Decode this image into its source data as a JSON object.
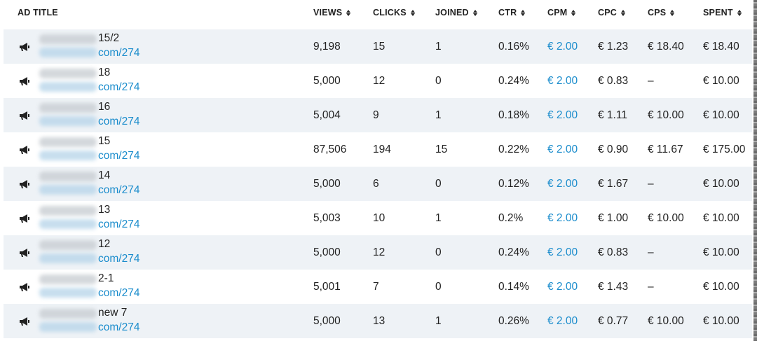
{
  "columns": {
    "ad_title": "AD TITLE",
    "views": "VIEWS",
    "clicks": "CLICKS",
    "joined": "JOINED",
    "ctr": "CTR",
    "cpm": "CPM",
    "cpc": "CPC",
    "cps": "CPS",
    "spent": "SPENT"
  },
  "rows": [
    {
      "title": "15/2",
      "link": "com/274",
      "views": "9,198",
      "clicks": "15",
      "joined": "1",
      "ctr": "0.16%",
      "cpm": "€ 2.00",
      "cpc": "€ 1.23",
      "cps": "€ 18.40",
      "spent": "€ 18.40"
    },
    {
      "title": "18",
      "link": "com/274",
      "views": "5,000",
      "clicks": "12",
      "joined": "0",
      "ctr": "0.24%",
      "cpm": "€ 2.00",
      "cpc": "€ 0.83",
      "cps": "–",
      "spent": "€ 10.00"
    },
    {
      "title": "16",
      "link": "com/274",
      "views": "5,004",
      "clicks": "9",
      "joined": "1",
      "ctr": "0.18%",
      "cpm": "€ 2.00",
      "cpc": "€ 1.11",
      "cps": "€ 10.00",
      "spent": "€ 10.00"
    },
    {
      "title": "15",
      "link": "com/274",
      "views": "87,506",
      "clicks": "194",
      "joined": "15",
      "ctr": "0.22%",
      "cpm": "€ 2.00",
      "cpc": "€ 0.90",
      "cps": "€ 11.67",
      "spent": "€ 175.00"
    },
    {
      "title": "14",
      "link": "com/274",
      "views": "5,000",
      "clicks": "6",
      "joined": "0",
      "ctr": "0.12%",
      "cpm": "€ 2.00",
      "cpc": "€ 1.67",
      "cps": "–",
      "spent": "€ 10.00"
    },
    {
      "title": "13",
      "link": "com/274",
      "views": "5,003",
      "clicks": "10",
      "joined": "1",
      "ctr": "0.2%",
      "cpm": "€ 2.00",
      "cpc": "€ 1.00",
      "cps": "€ 10.00",
      "spent": "€ 10.00"
    },
    {
      "title": "12",
      "link": "com/274",
      "views": "5,000",
      "clicks": "12",
      "joined": "0",
      "ctr": "0.24%",
      "cpm": "€ 2.00",
      "cpc": "€ 0.83",
      "cps": "–",
      "spent": "€ 10.00"
    },
    {
      "title": "2-1",
      "link": "com/274",
      "views": "5,001",
      "clicks": "7",
      "joined": "0",
      "ctr": "0.14%",
      "cpm": "€ 2.00",
      "cpc": "€ 1.43",
      "cps": "–",
      "spent": "€ 10.00"
    },
    {
      "title": "new 7",
      "link": "com/274",
      "views": "5,000",
      "clicks": "13",
      "joined": "1",
      "ctr": "0.26%",
      "cpm": "€ 2.00",
      "cpc": "€ 0.77",
      "cps": "€ 10.00",
      "spent": "€ 10.00"
    }
  ],
  "colors": {
    "link": "#1a8ccc",
    "row_alt": "#eef2f6"
  },
  "icons": {
    "row_icon": "megaphone-icon",
    "sort_icon": "sort-arrows-icon"
  }
}
